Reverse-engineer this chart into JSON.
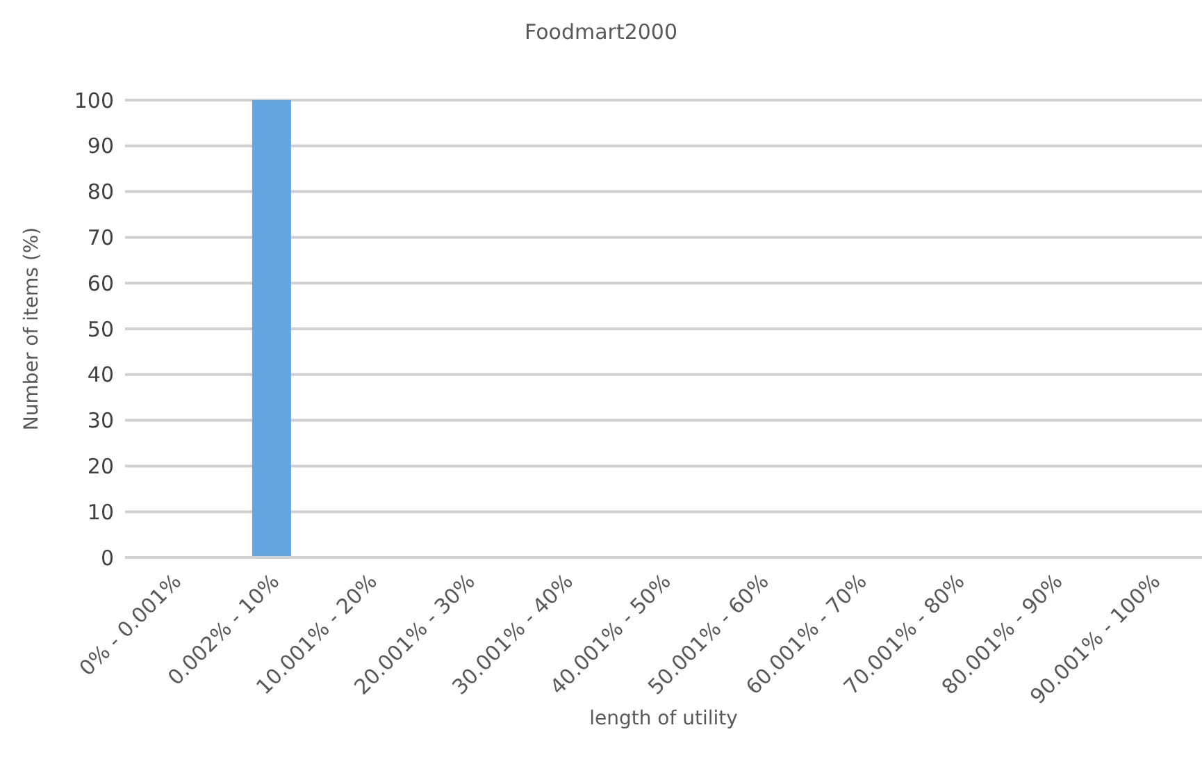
{
  "chart_data": {
    "type": "bar",
    "title": "Foodmart2000",
    "xlabel": "length of utility",
    "ylabel": "Number of items (%)",
    "categories": [
      "0% - 0.001%",
      "0.002% - 10%",
      "10.001% - 20%",
      "20.001% - 30%",
      "30.001% - 40%",
      "40.001% - 50%",
      "50.001% - 60%",
      "60.001% - 70%",
      "70.001% - 80%",
      "80.001% - 90%",
      "90.001% - 100%"
    ],
    "values": [
      0,
      100,
      0,
      0,
      0,
      0,
      0,
      0,
      0,
      0,
      0
    ],
    "color": "#65a5e0",
    "ylim": [
      0,
      100
    ],
    "yticks": [
      0,
      10,
      20,
      30,
      40,
      50,
      60,
      70,
      80,
      90,
      100
    ],
    "grid": "y"
  }
}
